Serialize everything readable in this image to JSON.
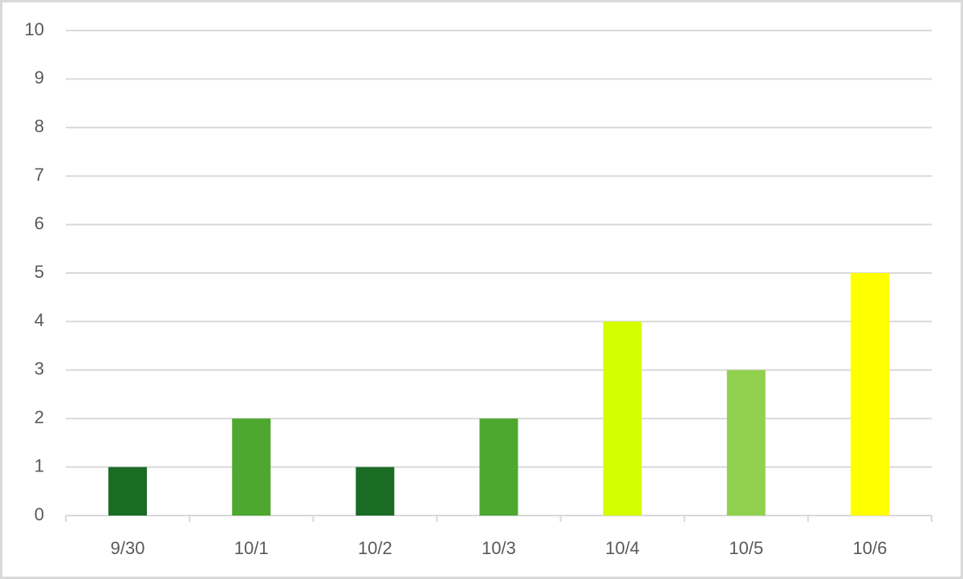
{
  "chart_data": {
    "type": "bar",
    "categories": [
      "9/30",
      "10/1",
      "10/2",
      "10/3",
      "10/4",
      "10/5",
      "10/6"
    ],
    "values": [
      1,
      2,
      1,
      2,
      4,
      3,
      5
    ],
    "colors": [
      "#1a6b24",
      "#4ea72e",
      "#1a6b24",
      "#4ea72e",
      "#d4ff00",
      "#92d050",
      "#ffff00"
    ],
    "ylim": [
      0,
      10
    ],
    "yticks": [
      0,
      1,
      2,
      3,
      4,
      5,
      6,
      7,
      8,
      9,
      10
    ],
    "grid": true
  }
}
